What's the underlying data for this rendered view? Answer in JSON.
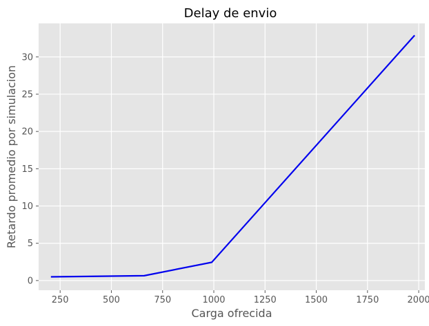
{
  "chart_data": {
    "type": "line",
    "title": "Delay de envio",
    "xlabel": "Carga ofrecida",
    "ylabel": "Retardo promedio por simulacion",
    "xlim": [
      145,
      2030
    ],
    "ylim": [
      -1.3,
      34.5
    ],
    "grid": true,
    "background": "#e5e5e5",
    "series_color": "#0000ee",
    "xticks": [
      250,
      500,
      750,
      1000,
      1250,
      1500,
      1750,
      2000
    ],
    "yticks": [
      0,
      5,
      10,
      15,
      20,
      25,
      30
    ],
    "xtick_labels": [
      "250",
      "500",
      "750",
      "1000",
      "1250",
      "1500",
      "1750",
      "2000"
    ],
    "ytick_labels": [
      "0",
      "5",
      "10",
      "15",
      "20",
      "25",
      "30"
    ],
    "series": [
      {
        "x": [
          205,
          660,
          990,
          1980
        ],
        "y": [
          0.5,
          0.65,
          2.45,
          32.9
        ]
      }
    ]
  }
}
